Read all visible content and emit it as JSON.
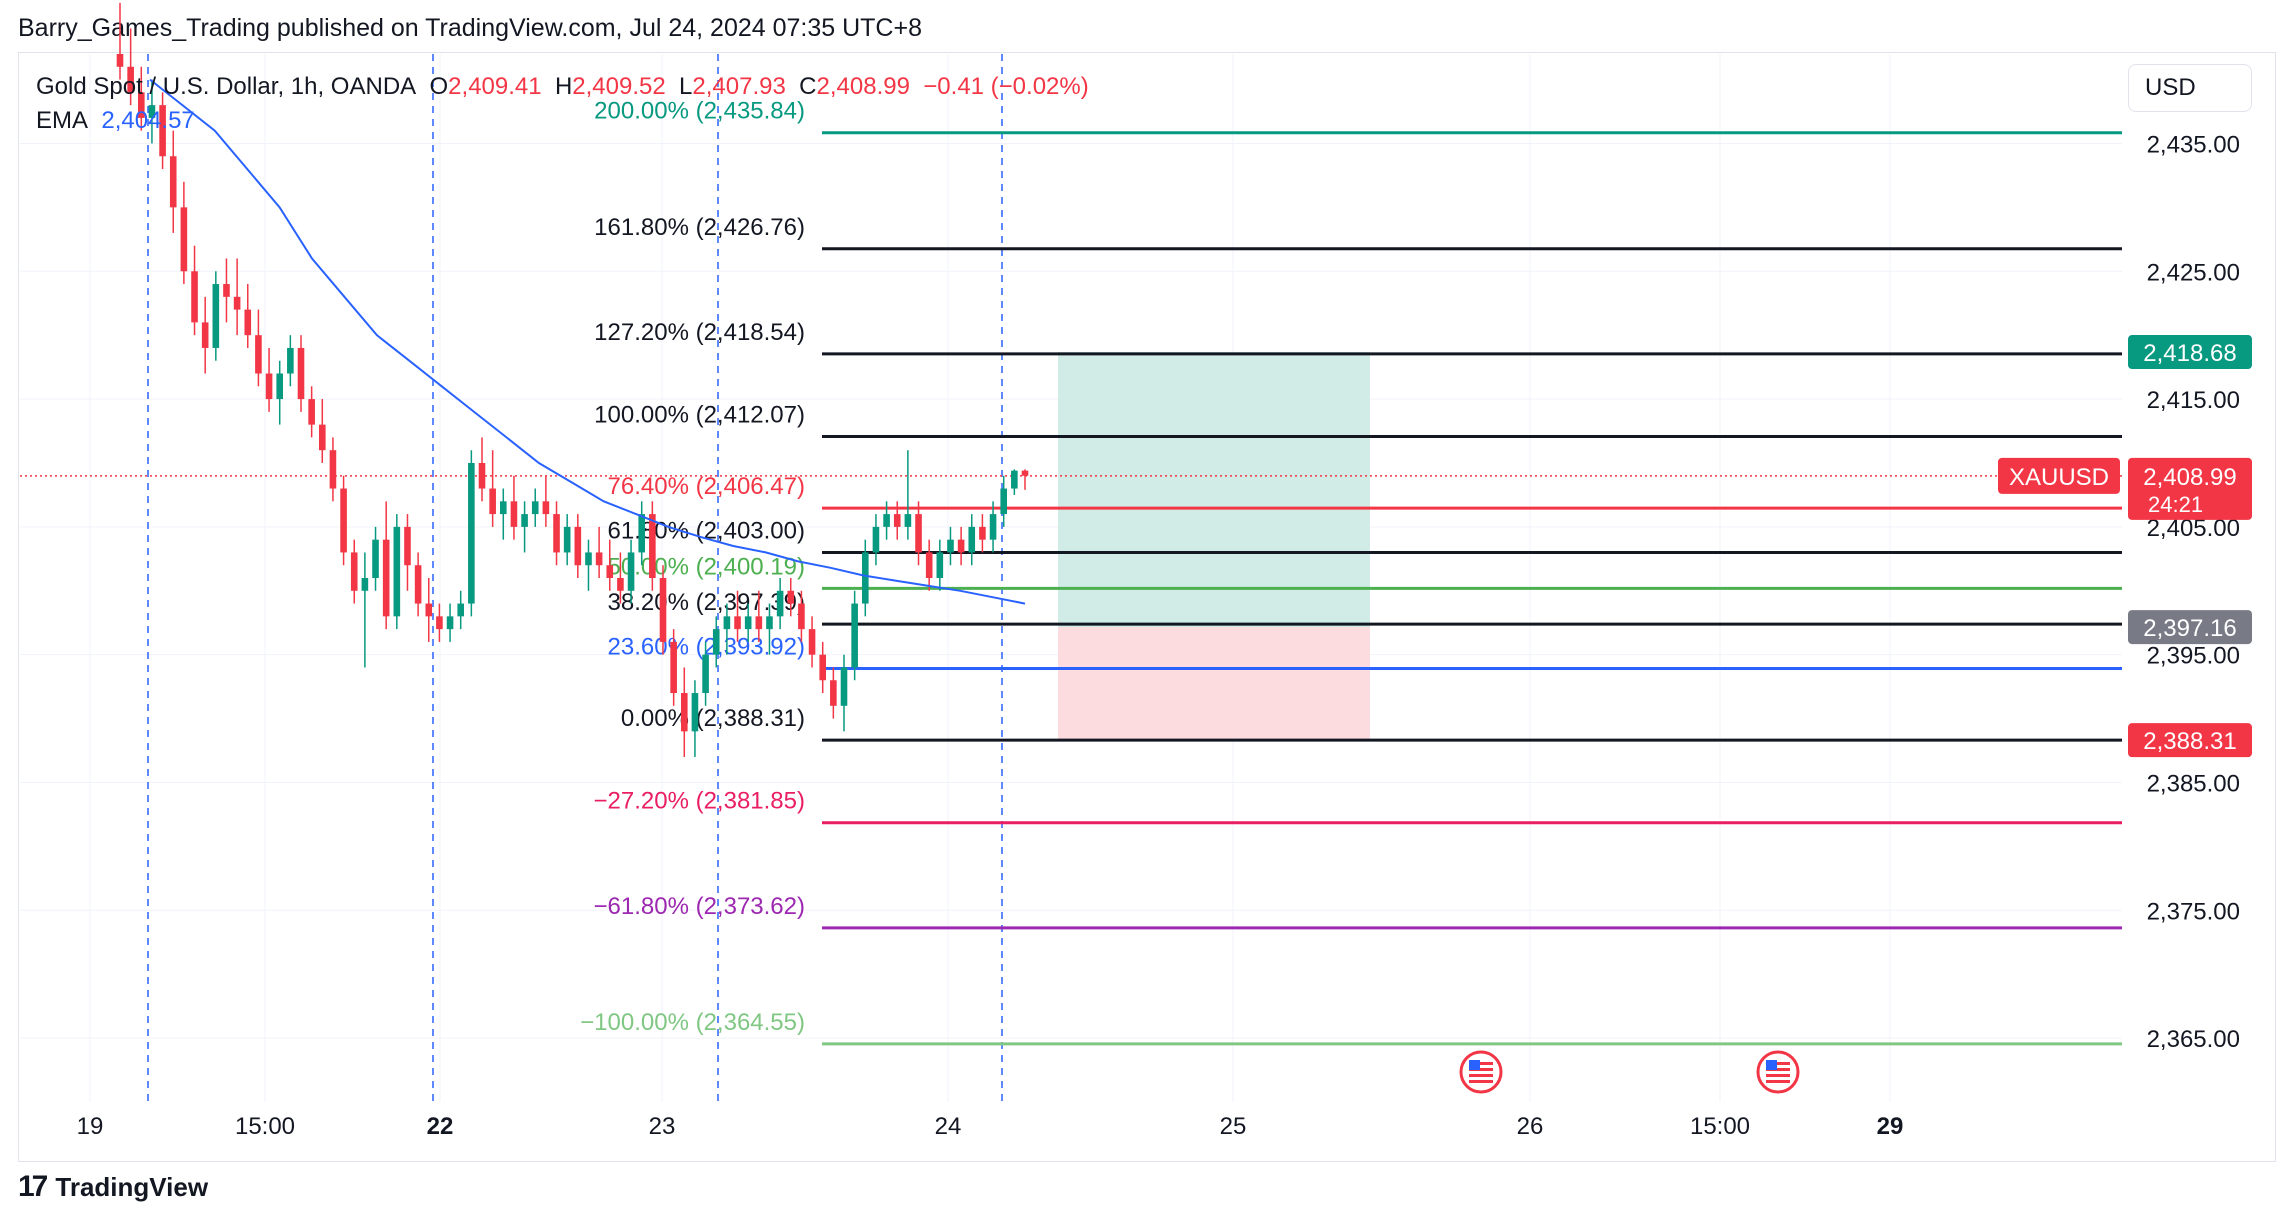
{
  "header": {
    "published_text": "Barry_Games_Trading published on TradingView.com, Jul 24, 2024 07:35 UTC+8"
  },
  "legend": {
    "symbol": "Gold Spot / U.S. Dollar, 1h, OANDA",
    "o_label": "O",
    "o_value": "2,409.41",
    "h_label": "H",
    "h_value": "2,409.52",
    "l_label": "L",
    "l_value": "2,407.93",
    "c_label": "C",
    "c_value": "2,408.99",
    "change": "−0.41 (−0.02%)",
    "ema_label": "EMA",
    "ema_value": "2,404.57"
  },
  "currency_button": "USD",
  "footer": {
    "logo_mark": "17",
    "brand": "TradingView"
  },
  "colors": {
    "up": "#089981",
    "down": "#f23645",
    "ema": "#2962ff",
    "target_zone": "#d1ece6",
    "stop_zone": "#fcdcde",
    "grid": "#f0f3fa"
  },
  "chart_data": {
    "type": "candlestick",
    "ylim": [
      2360,
      2442
    ],
    "y_ticks": [
      "2,435.00",
      "2,425.00",
      "2,415.00",
      "2,405.00",
      "2,395.00",
      "2,385.00",
      "2,375.00",
      "2,365.00"
    ],
    "y_tick_values": [
      2435,
      2425,
      2415,
      2405,
      2395,
      2385,
      2375,
      2365
    ],
    "x_ticks": [
      {
        "label": "19",
        "bold": false
      },
      {
        "label": "15:00",
        "bold": false
      },
      {
        "label": "22",
        "bold": true
      },
      {
        "label": "23",
        "bold": false
      },
      {
        "label": "24",
        "bold": false
      },
      {
        "label": "25",
        "bold": false
      },
      {
        "label": "26",
        "bold": false
      },
      {
        "label": "15:00",
        "bold": false
      },
      {
        "label": "29",
        "bold": true
      }
    ],
    "fib_levels": [
      {
        "label": "200.00% (2,435.84)",
        "value": 2435.84,
        "color": "#089981"
      },
      {
        "label": "161.80% (2,426.76)",
        "value": 2426.76,
        "color": "#131722"
      },
      {
        "label": "127.20% (2,418.54)",
        "value": 2418.54,
        "color": "#131722"
      },
      {
        "label": "100.00% (2,412.07)",
        "value": 2412.07,
        "color": "#131722"
      },
      {
        "label": "76.40% (2,406.47)",
        "value": 2406.47,
        "color": "#f23645"
      },
      {
        "label": "61.80% (2,403.00)",
        "value": 2403.0,
        "color": "#131722"
      },
      {
        "label": "50.00% (2,400.19)",
        "value": 2400.19,
        "color": "#4caf50"
      },
      {
        "label": "38.20% (2,397.39)",
        "value": 2397.39,
        "color": "#131722"
      },
      {
        "label": "23.60% (2,393.92)",
        "value": 2393.92,
        "color": "#2962ff"
      },
      {
        "label": "0.00% (2,388.31)",
        "value": 2388.31,
        "color": "#131722"
      },
      {
        "label": "−27.20% (2,381.85)",
        "value": 2381.85,
        "color": "#e91e63"
      },
      {
        "label": "−61.80% (2,373.62)",
        "value": 2373.62,
        "color": "#9c27b0"
      },
      {
        "label": "−100.00% (2,364.55)",
        "value": 2364.55,
        "color": "#81c784"
      }
    ],
    "price_tags": [
      {
        "label": "2,418.68",
        "value": 2418.68,
        "color": "#089981"
      },
      {
        "label": "2,397.16",
        "value": 2397.16,
        "color": "#787b86"
      },
      {
        "label": "2,388.31",
        "value": 2388.31,
        "color": "#f23645"
      }
    ],
    "current": {
      "symbol": "XAUUSD",
      "price": "2,408.99",
      "value": 2408.99,
      "countdown": "24:21"
    },
    "position": {
      "target": 2418.68,
      "entry": 2397.16,
      "stop": 2388.31
    },
    "candles": [
      [
        2442,
        2446,
        2440,
        2441
      ],
      [
        2441,
        2444,
        2438,
        2439
      ],
      [
        2439,
        2441,
        2436,
        2437
      ],
      [
        2437,
        2440,
        2435,
        2438
      ],
      [
        2438,
        2439,
        2433,
        2434
      ],
      [
        2434,
        2436,
        2428,
        2430
      ],
      [
        2430,
        2432,
        2424,
        2425
      ],
      [
        2425,
        2427,
        2420,
        2421
      ],
      [
        2421,
        2423,
        2417,
        2419
      ],
      [
        2419,
        2425,
        2418,
        2424
      ],
      [
        2424,
        2426,
        2421,
        2423
      ],
      [
        2423,
        2426,
        2420,
        2422
      ],
      [
        2422,
        2424,
        2419,
        2420
      ],
      [
        2420,
        2422,
        2416,
        2417
      ],
      [
        2417,
        2419,
        2414,
        2415
      ],
      [
        2415,
        2418,
        2413,
        2417
      ],
      [
        2417,
        2420,
        2416,
        2419
      ],
      [
        2419,
        2420,
        2414,
        2415
      ],
      [
        2415,
        2416,
        2412,
        2413
      ],
      [
        2413,
        2415,
        2410,
        2411
      ],
      [
        2411,
        2412,
        2407,
        2408
      ],
      [
        2408,
        2409,
        2402,
        2403
      ],
      [
        2403,
        2404,
        2399,
        2400
      ],
      [
        2400,
        2403,
        2394,
        2401
      ],
      [
        2401,
        2405,
        2400,
        2404
      ],
      [
        2404,
        2407,
        2397,
        2398
      ],
      [
        2398,
        2406,
        2397,
        2405
      ],
      [
        2405,
        2406,
        2400,
        2402
      ],
      [
        2402,
        2403,
        2398,
        2399
      ],
      [
        2399,
        2401,
        2396,
        2398
      ],
      [
        2398,
        2399,
        2396,
        2397
      ],
      [
        2397,
        2399,
        2396,
        2398
      ],
      [
        2398,
        2400,
        2397,
        2399
      ],
      [
        2399,
        2411,
        2398,
        2410
      ],
      [
        2410,
        2412,
        2407,
        2408
      ],
      [
        2408,
        2411,
        2405,
        2406
      ],
      [
        2406,
        2408,
        2404,
        2407
      ],
      [
        2407,
        2409,
        2404,
        2405
      ],
      [
        2405,
        2407,
        2403,
        2406
      ],
      [
        2406,
        2408,
        2405,
        2407
      ],
      [
        2407,
        2409,
        2405,
        2406
      ],
      [
        2406,
        2407,
        2402,
        2403
      ],
      [
        2403,
        2406,
        2402,
        2405
      ],
      [
        2405,
        2406,
        2401,
        2402
      ],
      [
        2402,
        2404,
        2400,
        2403
      ],
      [
        2403,
        2405,
        2401,
        2402
      ],
      [
        2402,
        2404,
        2400,
        2401
      ],
      [
        2401,
        2403,
        2399,
        2400
      ],
      [
        2400,
        2404,
        2399,
        2403
      ],
      [
        2403,
        2407,
        2402,
        2406
      ],
      [
        2406,
        2407,
        2400,
        2401
      ],
      [
        2401,
        2402,
        2395,
        2396
      ],
      [
        2396,
        2397,
        2391,
        2392
      ],
      [
        2392,
        2394,
        2387,
        2389
      ],
      [
        2389,
        2393,
        2387,
        2392
      ],
      [
        2392,
        2396,
        2391,
        2395
      ],
      [
        2395,
        2398,
        2394,
        2397
      ],
      [
        2397,
        2399,
        2395,
        2398
      ],
      [
        2398,
        2400,
        2396,
        2397
      ],
      [
        2397,
        2399,
        2396,
        2398
      ],
      [
        2398,
        2400,
        2396,
        2397
      ],
      [
        2397,
        2399,
        2395,
        2398
      ],
      [
        2398,
        2401,
        2397,
        2400
      ],
      [
        2400,
        2401,
        2398,
        2399
      ],
      [
        2399,
        2400,
        2396,
        2397
      ],
      [
        2397,
        2398,
        2394,
        2395
      ],
      [
        2395,
        2396,
        2392,
        2393
      ],
      [
        2393,
        2394,
        2390,
        2391
      ],
      [
        2391,
        2395,
        2389,
        2394
      ],
      [
        2394,
        2400,
        2393,
        2399
      ],
      [
        2399,
        2404,
        2398,
        2403
      ],
      [
        2403,
        2406,
        2402,
        2405
      ],
      [
        2405,
        2407,
        2404,
        2406
      ],
      [
        2406,
        2407,
        2404,
        2405
      ],
      [
        2405,
        2411,
        2404,
        2406
      ],
      [
        2406,
        2407,
        2402,
        2403
      ],
      [
        2403,
        2404,
        2400,
        2401
      ],
      [
        2401,
        2404,
        2400,
        2403
      ],
      [
        2403,
        2405,
        2402,
        2404
      ],
      [
        2404,
        2405,
        2402,
        2403
      ],
      [
        2403,
        2406,
        2402,
        2405
      ],
      [
        2405,
        2406,
        2403,
        2404
      ],
      [
        2404,
        2407,
        2403,
        2406
      ],
      [
        2406,
        2409,
        2405,
        2408
      ],
      [
        2408,
        2409.5,
        2407.5,
        2409.4
      ],
      [
        2409.4,
        2409.5,
        2407.9,
        2409
      ]
    ],
    "ema": [
      2440,
      2438,
      2436,
      2433,
      2430,
      2426,
      2423,
      2420,
      2418,
      2416,
      2414,
      2412,
      2410,
      2408.5,
      2407,
      2406,
      2405,
      2404.2,
      2403.5,
      2403,
      2402.3,
      2401.8,
      2401.2,
      2400.8,
      2400.4,
      2400,
      2399.5,
      2399
    ]
  }
}
